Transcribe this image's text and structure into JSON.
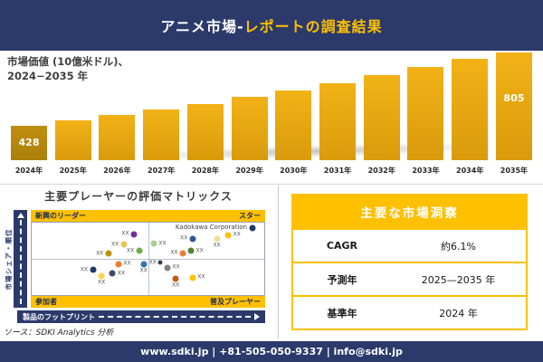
{
  "header": {
    "title_white": "アニメ市場-",
    "title_gold": "レポートの調査結果"
  },
  "chart_data": [
    {
      "type": "bar",
      "title": "市場価値（10億米ドル）、2024−2035 年",
      "label_line1": "市場価値 (10億米ドル)、",
      "label_line2": "2024−2035 年",
      "categories": [
        "2024年",
        "2025年",
        "2026年",
        "2027年",
        "2028年",
        "2029年",
        "2030年",
        "2031年",
        "2032年",
        "2033年",
        "2034年",
        "2035年"
      ],
      "values": [
        428,
        454,
        482,
        511,
        542,
        576,
        611,
        648,
        688,
        730,
        774,
        805
      ],
      "labeled_values": {
        "2024年": "428",
        "2035年": "805"
      },
      "ylim": [
        0,
        850
      ],
      "grid": false,
      "bar_color": "#E8A713",
      "first_bar_color": "#B5870E"
    },
    {
      "type": "scatter",
      "title": "主要プレーヤーの評価マトリックス",
      "xlabel": "製品のフットプリント",
      "ylabel": "市場シェア・順位",
      "quadrants": {
        "top_left": "新興のリーダー",
        "top_right": "スター",
        "bottom_left": "参加者",
        "bottom_right": "普及プレーヤー"
      },
      "points": [
        {
          "x": 44.0,
          "y": 16,
          "color": "#7030A0",
          "label": "XX",
          "label_side": "left"
        },
        {
          "x": 39.6,
          "y": 30,
          "color": "#E3C657",
          "label": "XX",
          "label_side": "left"
        },
        {
          "x": 33.0,
          "y": 43,
          "color": "#BF8F00",
          "label": "XX",
          "label_side": "left"
        },
        {
          "x": 46.2,
          "y": 39,
          "color": "#70AD47",
          "label": "XX",
          "label_side": "left"
        },
        {
          "x": 94.8,
          "y": 7,
          "color": "#1F3864",
          "label": "Kadokawa Corporation",
          "label_side": "left"
        },
        {
          "x": 69.2,
          "y": 22,
          "color": "#2F5597",
          "label": "XX",
          "label_side": "left"
        },
        {
          "x": 84.5,
          "y": 17,
          "color": "#FFC000",
          "label": "XX",
          "label_side": "right"
        },
        {
          "x": 79.6,
          "y": 23,
          "color": "#EFE09B",
          "label": "XX",
          "label_side": "bottom"
        },
        {
          "x": 52.5,
          "y": 29,
          "color": "#A9D18E",
          "label": "XX",
          "label_side": "right"
        },
        {
          "x": 65.0,
          "y": 42,
          "color": "#ED7D31",
          "label": "XX",
          "label_side": "left"
        },
        {
          "x": 68.5,
          "y": 39,
          "color": "#548235",
          "label": "XX",
          "label_side": "right"
        },
        {
          "x": 37.3,
          "y": 57,
          "color": "#ED7D31",
          "label": "XX",
          "label_side": "right"
        },
        {
          "x": 48.1,
          "y": 58,
          "color": "#2E75B6",
          "label": "XX",
          "label_side": "bottom"
        },
        {
          "x": 26.3,
          "y": 65,
          "color": "#203864",
          "label": "XX",
          "label_side": "left"
        },
        {
          "x": 34.8,
          "y": 70,
          "color": "#3B4A6B",
          "label": "XX",
          "label_side": "right"
        },
        {
          "x": 30.0,
          "y": 74,
          "color": "#FFD24D",
          "label": "XX",
          "label_side": "bottom"
        },
        {
          "x": 55.4,
          "y": 55,
          "color": "#333F50",
          "label": "XX",
          "label_side": "left",
          "size": 5
        },
        {
          "x": 58.3,
          "y": 62,
          "color": "#7F7F7F",
          "label": "XX",
          "label_side": "right"
        },
        {
          "x": 61.9,
          "y": 78,
          "color": "#C55A11",
          "label": "XX",
          "label_side": "bottom"
        },
        {
          "x": 69.2,
          "y": 76,
          "color": "#FFC000",
          "label": "XX",
          "label_side": "right"
        }
      ]
    }
  ],
  "insights": {
    "title": "主要な市場洞察",
    "rows": [
      {
        "label": "CAGR",
        "value": "約6.1%"
      },
      {
        "label": "予測年",
        "value": "2025—2035 年"
      },
      {
        "label": "基準年",
        "value": "2024 年"
      }
    ]
  },
  "source": "ソース：SDKI Analytics 分析",
  "footer": "www.sdki.jp | +81-505-050-9337 | info@sdki.jp",
  "colors": {
    "navy": "#2B3A6B",
    "gold": "#FFC000",
    "bar_gold": "#E8A713",
    "bar_first": "#B5870E",
    "text_dark": "#404040"
  }
}
